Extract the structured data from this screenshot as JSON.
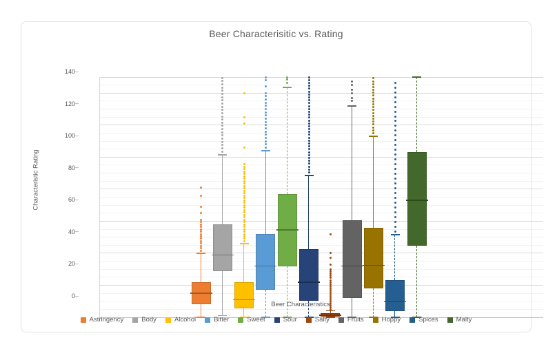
{
  "chart_data": {
    "type": "boxplot",
    "title": "Beer Characterisitic vs. Rating",
    "xlabel": "Beer Characteristics",
    "ylabel": "Characteristic Rating",
    "ylim": [
      0,
      150
    ],
    "y_ticks": [
      0,
      20,
      40,
      60,
      80,
      100,
      120,
      140
    ],
    "grid": {
      "major_step": 20,
      "minor_step": 5,
      "major_color": "#D9D9D9",
      "minor_color": "#F2F2F2",
      "axis_color": "#BFBFBF"
    },
    "legend_position": "bottom",
    "series": [
      {
        "name": "Astringency",
        "color": "#ED7D31",
        "q1": 8,
        "median": 15,
        "q3": 22,
        "whisker_low": 0,
        "whisker_high": 40,
        "outliers_dense": {
          "min": 41.5,
          "max": 62,
          "step": 1.5
        },
        "outliers": [
          65,
          69,
          76,
          81
        ],
        "whisker_style": {
          "top": "solid",
          "bottom": "solid"
        }
      },
      {
        "name": "Body",
        "color": "#A5A5A5",
        "q1": 29,
        "median": 39,
        "q3": 58,
        "whisker_low": 1,
        "whisker_high": 101.5,
        "outliers_dense": {
          "min": 103.5,
          "max": 149.5,
          "step": 2
        },
        "outliers": [],
        "whisker_style": {
          "top": "solid",
          "bottom": "solid"
        }
      },
      {
        "name": "Alcohol",
        "color": "#FFC000",
        "q1": 5.5,
        "median": 11,
        "q3": 22,
        "whisker_low": 0,
        "whisker_high": 46,
        "outliers_dense": {
          "min": 47.5,
          "max": 96,
          "step": 1.5
        },
        "outliers": [
          106,
          121,
          125,
          140
        ],
        "whisker_style": {
          "top": "solid",
          "bottom": "solid"
        }
      },
      {
        "name": "Bitter",
        "color": "#5B9BD5",
        "q1": 17,
        "median": 32,
        "q3": 52,
        "whisker_low": 0,
        "whisker_high": 104,
        "outliers_dense": {
          "min": 106,
          "max": 140,
          "step": 2
        },
        "outliers": [
          144,
          148,
          150
        ],
        "whisker_style": {
          "top": "solid",
          "bottom": "dashed"
        }
      },
      {
        "name": "Sweet",
        "color": "#70AD47",
        "q1": 32,
        "median": 54.5,
        "q3": 77,
        "whisker_low": 0,
        "whisker_high": 143.5,
        "outliers_dense": null,
        "outliers": [
          146.5,
          148.5,
          150
        ],
        "whisker_style": {
          "top": "dashed",
          "bottom": "dashed"
        }
      },
      {
        "name": "Sour",
        "color": "#264478",
        "q1": 10.5,
        "median": 22,
        "q3": 42.5,
        "whisker_low": 0,
        "whisker_high": 88.5,
        "outliers_dense": {
          "min": 90.5,
          "max": 150,
          "step": 1.8
        },
        "outliers": [],
        "whisker_style": {
          "top": "solid",
          "bottom": "dashed"
        }
      },
      {
        "name": "Salty",
        "color": "#9E480E",
        "q1": 0.5,
        "median": 1.2,
        "q3": 2.5,
        "whisker_low": 0,
        "whisker_high": 4,
        "outliers_dense": {
          "min": 5,
          "max": 30,
          "step": 1.3
        },
        "outliers": [
          33,
          37,
          40,
          52
        ],
        "whisker_style": {
          "top": "dashed",
          "bottom": "dashed"
        }
      },
      {
        "name": "Fruits",
        "color": "#636363",
        "q1": 12,
        "median": 32,
        "q3": 60.5,
        "whisker_low": 0,
        "whisker_high": 132,
        "outliers_dense": null,
        "outliers": [
          135,
          137,
          140,
          142,
          145,
          147
        ],
        "whisker_style": {
          "top": "solid",
          "bottom": "solid"
        }
      },
      {
        "name": "Hoppy",
        "color": "#997300",
        "q1": 18,
        "median": 32.5,
        "q3": 56,
        "whisker_low": 0,
        "whisker_high": 113,
        "outliers_dense": {
          "min": 115,
          "max": 150,
          "step": 1.8
        },
        "outliers": [],
        "whisker_style": {
          "top": "solid",
          "bottom": "dashed"
        }
      },
      {
        "name": "Spices",
        "color": "#255E91",
        "q1": 3.7,
        "median": 9.7,
        "q3": 23.3,
        "whisker_low": 0,
        "whisker_high": 51.5,
        "outliers_dense": {
          "min": 53.5,
          "max": 148,
          "step": 3
        },
        "outliers": [],
        "whisker_style": {
          "top": "dashed",
          "bottom": "solid"
        }
      },
      {
        "name": "Malty",
        "color": "#43682B",
        "q1": 44.5,
        "median": 73,
        "q3": 103,
        "whisker_low": 0,
        "whisker_high": 150,
        "outliers_dense": null,
        "outliers": [],
        "whisker_style": {
          "top": "dashed",
          "bottom": "dashed"
        }
      }
    ]
  }
}
